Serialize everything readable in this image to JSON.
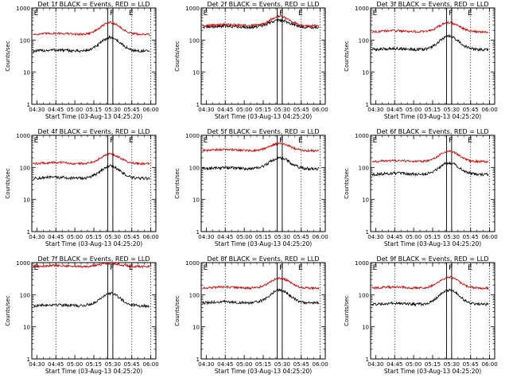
{
  "chart_data": [
    {
      "type": "line",
      "title": "Det 1f BLACK = Events, RED = LLD",
      "xlabel": "Start Time (03-Aug-13 04:25:20)",
      "ylabel": "Counts/sec",
      "yscale": "log",
      "ylim": [
        1,
        1000
      ],
      "ytick_labels": [
        "1",
        "10",
        "100",
        "1000"
      ],
      "xlim": [
        "04:26",
        "06:04"
      ],
      "xtick_labels": [
        "04:30",
        "04:45",
        "05:00",
        "05:15",
        "05:30",
        "05:45",
        "06:00"
      ],
      "dotted_lines": [
        "04:45",
        "05:30",
        "05:45",
        "06:00"
      ],
      "markers": [
        {
          "label": "E",
          "time": "04:27"
        },
        {
          "label": "F",
          "time": "05:27"
        },
        {
          "label": "E",
          "time": "05:42"
        }
      ],
      "highlight_band": [
        "05:26",
        "05:30"
      ],
      "series": [
        {
          "name": "Events",
          "color": "#000000",
          "base": 45,
          "peak": 120
        },
        {
          "name": "LLD",
          "color": "#cc0000",
          "base": 150,
          "peak": 350
        }
      ]
    },
    {
      "type": "line",
      "title": "Det 2f BLACK = Events, RED = LLD",
      "xlabel": "Start Time (03-Aug-13 04:25:20)",
      "ylabel": "Counts/sec",
      "yscale": "log",
      "ylim": [
        1,
        1000
      ],
      "ytick_labels": [
        "1",
        "10",
        "100",
        "1000"
      ],
      "xlim": [
        "04:26",
        "06:04"
      ],
      "xtick_labels": [
        "04:30",
        "04:45",
        "05:00",
        "05:15",
        "05:30",
        "05:45",
        "06:00"
      ],
      "dotted_lines": [
        "04:45",
        "05:30",
        "05:45",
        "06:00"
      ],
      "markers": [
        {
          "label": "E",
          "time": "04:27"
        },
        {
          "label": "F",
          "time": "05:27"
        },
        {
          "label": "E",
          "time": "05:42"
        }
      ],
      "highlight_band": [
        "05:26",
        "05:30"
      ],
      "series": [
        {
          "name": "Events",
          "color": "#000000",
          "base": 250,
          "peak": 420
        },
        {
          "name": "LLD",
          "color": "#cc0000",
          "base": 280,
          "peak": 550
        }
      ]
    },
    {
      "type": "line",
      "title": "Det 3f BLACK = Events, RED = LLD",
      "xlabel": "Start Time (03-Aug-13 04:25:20)",
      "ylabel": "Counts/sec",
      "yscale": "log",
      "ylim": [
        1,
        1000
      ],
      "ytick_labels": [
        "1",
        "10",
        "100",
        "1000"
      ],
      "xlim": [
        "04:26",
        "06:04"
      ],
      "xtick_labels": [
        "04:30",
        "04:45",
        "05:00",
        "05:15",
        "05:30",
        "05:45",
        "06:00"
      ],
      "dotted_lines": [
        "04:45",
        "05:30",
        "05:45",
        "06:00"
      ],
      "markers": [
        {
          "label": "E",
          "time": "04:27"
        },
        {
          "label": "F",
          "time": "05:27"
        },
        {
          "label": "E",
          "time": "05:42"
        }
      ],
      "highlight_band": [
        "05:26",
        "05:30"
      ],
      "series": [
        {
          "name": "Events",
          "color": "#000000",
          "base": 50,
          "peak": 130
        },
        {
          "name": "LLD",
          "color": "#cc0000",
          "base": 180,
          "peak": 350
        }
      ]
    },
    {
      "type": "line",
      "title": "Det 4f BLACK = Events, RED = LLD",
      "xlabel": "Start Time (03-Aug-13 04:25:20)",
      "ylabel": "Counts/sec",
      "yscale": "log",
      "ylim": [
        1,
        1000
      ],
      "ytick_labels": [
        "1",
        "10",
        "100",
        "1000"
      ],
      "xlim": [
        "04:26",
        "06:04"
      ],
      "xtick_labels": [
        "04:30",
        "04:45",
        "05:00",
        "05:15",
        "05:30",
        "05:45",
        "06:00"
      ],
      "dotted_lines": [
        "04:45",
        "05:30",
        "05:45",
        "06:00"
      ],
      "markers": [
        {
          "label": "E",
          "time": "04:27"
        },
        {
          "label": "F",
          "time": "05:27"
        },
        {
          "label": "E",
          "time": "05:42"
        }
      ],
      "highlight_band": [
        "05:26",
        "05:30"
      ],
      "series": [
        {
          "name": "Events",
          "color": "#000000",
          "base": 45,
          "peak": 110
        },
        {
          "name": "LLD",
          "color": "#cc0000",
          "base": 130,
          "peak": 260
        }
      ]
    },
    {
      "type": "line",
      "title": "Det 5f BLACK = Events, RED = LLD",
      "xlabel": "Start Time (03-Aug-13 04:25:20)",
      "ylabel": "Counts/sec",
      "yscale": "log",
      "ylim": [
        1,
        1000
      ],
      "ytick_labels": [
        "1",
        "10",
        "100",
        "1000"
      ],
      "xlim": [
        "04:26",
        "06:04"
      ],
      "xtick_labels": [
        "04:30",
        "04:45",
        "05:00",
        "05:15",
        "05:30",
        "05:45",
        "06:00"
      ],
      "dotted_lines": [
        "04:45",
        "05:30",
        "05:45",
        "06:00"
      ],
      "markers": [
        {
          "label": "E",
          "time": "04:27"
        },
        {
          "label": "F",
          "time": "05:27"
        },
        {
          "label": "E",
          "time": "05:42"
        }
      ],
      "highlight_band": [
        "05:26",
        "05:30"
      ],
      "series": [
        {
          "name": "Events",
          "color": "#000000",
          "base": 90,
          "peak": 200
        },
        {
          "name": "LLD",
          "color": "#cc0000",
          "base": 330,
          "peak": 560
        }
      ]
    },
    {
      "type": "line",
      "title": "Det 6f BLACK = Events, RED = LLD",
      "xlabel": "Start Time (03-Aug-13 04:25:20)",
      "ylabel": "Counts/sec",
      "yscale": "log",
      "ylim": [
        1,
        1000
      ],
      "ytick_labels": [
        "1",
        "10",
        "100",
        "1000"
      ],
      "xlim": [
        "04:26",
        "06:04"
      ],
      "xtick_labels": [
        "04:30",
        "04:45",
        "05:00",
        "05:15",
        "05:30",
        "05:45",
        "06:00"
      ],
      "dotted_lines": [
        "04:45",
        "05:30",
        "05:45",
        "06:00"
      ],
      "markers": [
        {
          "label": "E",
          "time": "04:27"
        },
        {
          "label": "F",
          "time": "05:27"
        },
        {
          "label": "E",
          "time": "05:42"
        }
      ],
      "highlight_band": [
        "05:26",
        "05:30"
      ],
      "series": [
        {
          "name": "Events",
          "color": "#000000",
          "base": 60,
          "peak": 140
        },
        {
          "name": "LLD",
          "color": "#cc0000",
          "base": 150,
          "peak": 320
        }
      ]
    },
    {
      "type": "line",
      "title": "Det 7f BLACK = Events, RED = LLD",
      "xlabel": "Start Time (03-Aug-13 04:25:20)",
      "ylabel": "Counts/sec",
      "yscale": "log",
      "ylim": [
        1,
        1000
      ],
      "ytick_labels": [
        "1",
        "10",
        "100",
        "1000"
      ],
      "xlim": [
        "04:26",
        "06:04"
      ],
      "xtick_labels": [
        "04:30",
        "04:45",
        "05:00",
        "05:15",
        "05:30",
        "05:45",
        "06:00"
      ],
      "dotted_lines": [
        "04:45",
        "05:30",
        "05:45",
        "06:00"
      ],
      "markers": [
        {
          "label": "E",
          "time": "04:27"
        },
        {
          "label": "F",
          "time": "05:27"
        },
        {
          "label": "E",
          "time": "05:42"
        }
      ],
      "highlight_band": [
        "05:26",
        "05:30"
      ],
      "series": [
        {
          "name": "Events",
          "color": "#000000",
          "base": 45,
          "peak": 110
        },
        {
          "name": "LLD",
          "color": "#cc0000",
          "base": 750,
          "peak": 950
        }
      ]
    },
    {
      "type": "line",
      "title": "Det 8f BLACK = Events, RED = LLD",
      "xlabel": "Start Time (03-Aug-13 04:25:20)",
      "ylabel": "Counts/sec",
      "yscale": "log",
      "ylim": [
        1,
        1000
      ],
      "ytick_labels": [
        "1",
        "10",
        "100",
        "1000"
      ],
      "xlim": [
        "04:26",
        "06:04"
      ],
      "xtick_labels": [
        "04:30",
        "04:45",
        "05:00",
        "05:15",
        "05:30",
        "05:45",
        "06:00"
      ],
      "dotted_lines": [
        "04:45",
        "05:30",
        "05:45",
        "06:00"
      ],
      "markers": [
        {
          "label": "E",
          "time": "04:27"
        },
        {
          "label": "F",
          "time": "05:27"
        },
        {
          "label": "E",
          "time": "05:42"
        }
      ],
      "highlight_band": [
        "05:26",
        "05:30"
      ],
      "series": [
        {
          "name": "Events",
          "color": "#000000",
          "base": 55,
          "peak": 140
        },
        {
          "name": "LLD",
          "color": "#cc0000",
          "base": 160,
          "peak": 330
        }
      ]
    },
    {
      "type": "line",
      "title": "Det 9f BLACK = Events, RED = LLD",
      "xlabel": "Start Time (03-Aug-13 04:25:20)",
      "ylabel": "Counts/sec",
      "yscale": "log",
      "ylim": [
        1,
        1000
      ],
      "ytick_labels": [
        "1",
        "10",
        "100",
        "1000"
      ],
      "xlim": [
        "04:26",
        "06:04"
      ],
      "xtick_labels": [
        "04:30",
        "04:45",
        "05:00",
        "05:15",
        "05:30",
        "05:45",
        "06:00"
      ],
      "dotted_lines": [
        "04:45",
        "05:30",
        "05:45",
        "06:00"
      ],
      "markers": [
        {
          "label": "E",
          "time": "04:27"
        },
        {
          "label": "F",
          "time": "05:27"
        },
        {
          "label": "E",
          "time": "05:42"
        }
      ],
      "highlight_band": [
        "05:26",
        "05:30"
      ],
      "series": [
        {
          "name": "Events",
          "color": "#000000",
          "base": 50,
          "peak": 140
        },
        {
          "name": "LLD",
          "color": "#cc0000",
          "base": 160,
          "peak": 350
        }
      ]
    }
  ]
}
